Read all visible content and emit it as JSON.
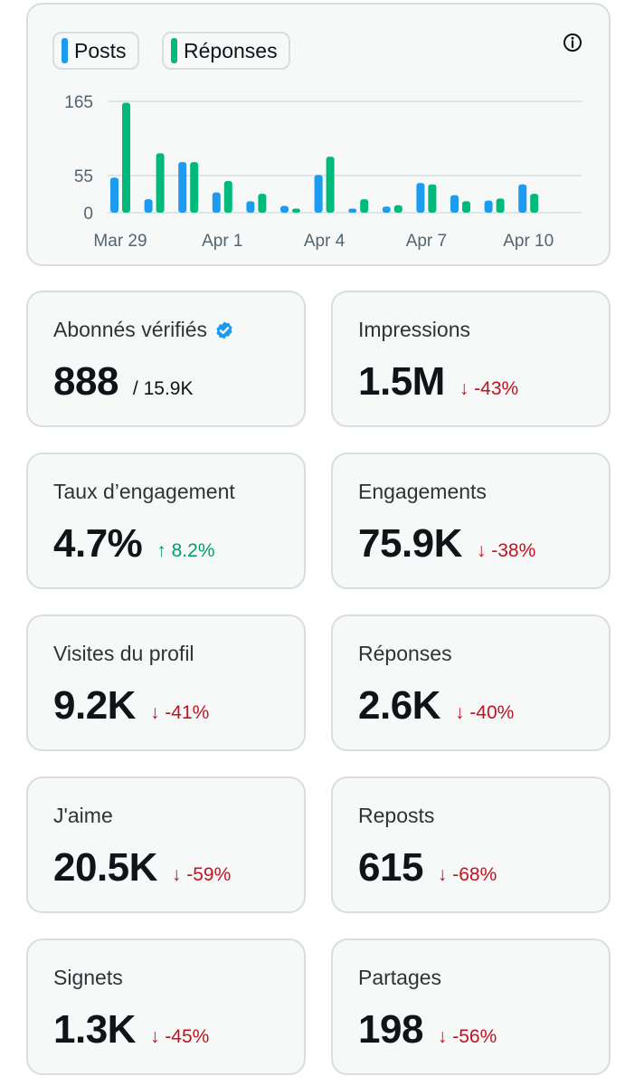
{
  "legend": {
    "posts_label": "Posts",
    "replies_label": "Réponses",
    "posts_color": "#1d9bf0",
    "replies_color": "#00ba7c"
  },
  "chart_data": {
    "type": "bar",
    "categories": [
      "Mar 29",
      "Mar 30",
      "Mar 31",
      "Apr 1",
      "Apr 2",
      "Apr 3",
      "Apr 4",
      "Apr 5",
      "Apr 6",
      "Apr 7",
      "Apr 8",
      "Apr 9",
      "Apr 10"
    ],
    "x_tick_labels": [
      "Mar 29",
      "Apr 1",
      "Apr 4",
      "Apr 7",
      "Apr 10"
    ],
    "y_ticks": [
      0,
      55,
      165
    ],
    "ylim": [
      0,
      175
    ],
    "series": [
      {
        "name": "Posts",
        "color": "#1d9bf0",
        "values": [
          52,
          20,
          75,
          30,
          17,
          10,
          56,
          6,
          9,
          44,
          26,
          18,
          42
        ]
      },
      {
        "name": "Réponses",
        "color": "#00ba7c",
        "values": [
          163,
          88,
          75,
          47,
          28,
          6,
          83,
          20,
          11,
          42,
          17,
          21,
          28
        ]
      }
    ],
    "grid": true,
    "legend_position": "top-left"
  },
  "metrics": [
    {
      "label": "Abonnés vérifiés",
      "value": "888",
      "sub": "/ 15.9K",
      "verified": true
    },
    {
      "label": "Impressions",
      "value": "1.5M",
      "change": "↓ -43%",
      "direction": "down"
    },
    {
      "label": "Taux d’engagement",
      "value": "4.7%",
      "change": "↑ 8.2%",
      "direction": "up"
    },
    {
      "label": "Engagements",
      "value": "75.9K",
      "change": "↓ -38%",
      "direction": "down"
    },
    {
      "label": "Visites du profil",
      "value": "9.2K",
      "change": "↓ -41%",
      "direction": "down"
    },
    {
      "label": "Réponses",
      "value": "2.6K",
      "change": "↓ -40%",
      "direction": "down"
    },
    {
      "label": "J'aime",
      "value": "20.5K",
      "change": "↓ -59%",
      "direction": "down"
    },
    {
      "label": "Reposts",
      "value": "615",
      "change": "↓ -68%",
      "direction": "down"
    },
    {
      "label": "Signets",
      "value": "1.3K",
      "change": "↓ -45%",
      "direction": "down"
    },
    {
      "label": "Partages",
      "value": "198",
      "change": "↓ -56%",
      "direction": "down"
    }
  ]
}
